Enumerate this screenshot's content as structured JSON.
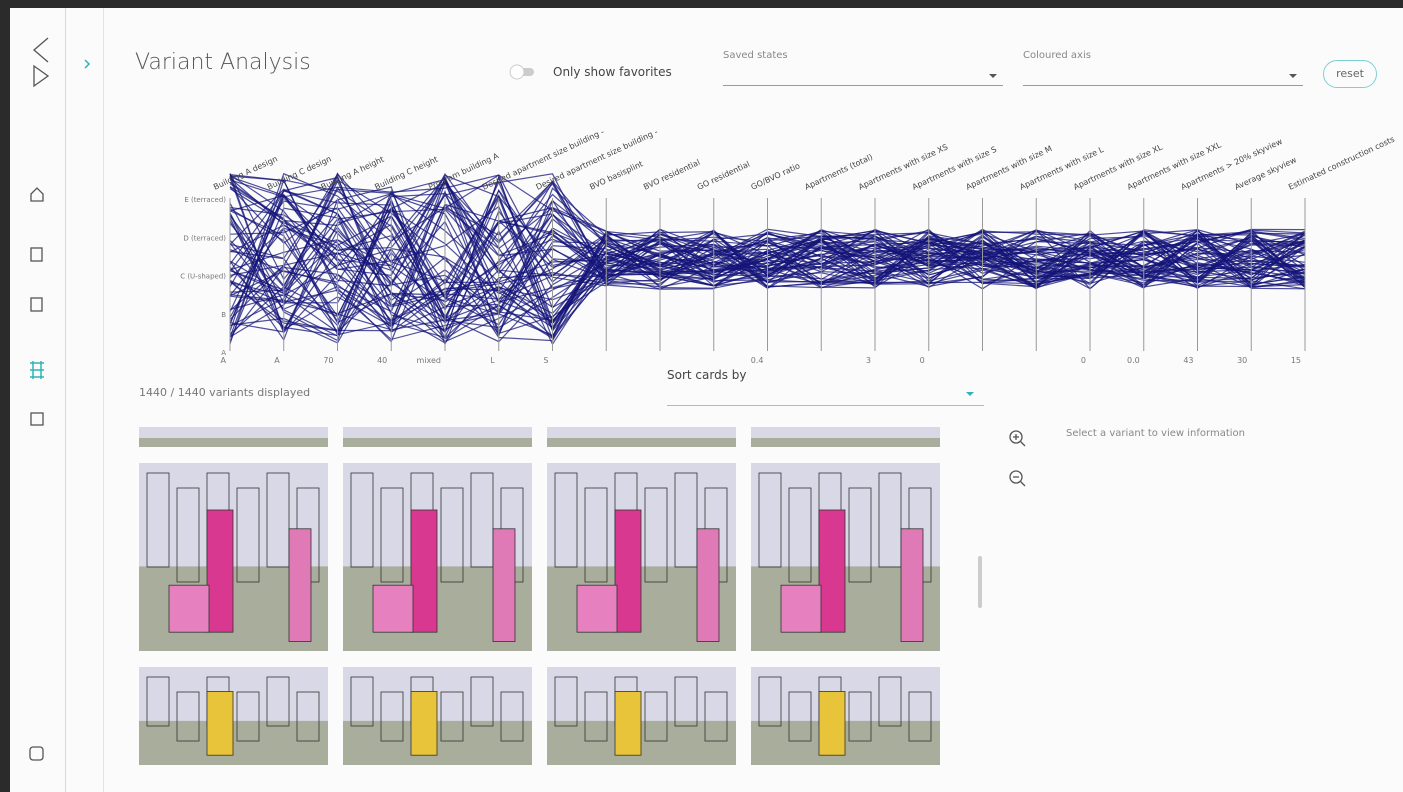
{
  "header": {
    "title": "Variant Analysis",
    "toggle_label": "Only show favorites",
    "saved_states_label": "Saved states",
    "coloured_axis_label": "Coloured axis",
    "reset": "reset"
  },
  "parallel_axes": {
    "left_labels": [
      "E (terraced)",
      "D (terraced)",
      "C (U-shaped)",
      "B",
      "A"
    ],
    "axes": [
      {
        "name": "Building A design",
        "bottom": "A"
      },
      {
        "name": "Building C design",
        "bottom": "A"
      },
      {
        "name": "Building A height",
        "bottom": "70"
      },
      {
        "name": "Building C height",
        "bottom": "40"
      },
      {
        "name": "Program building A",
        "bottom": "mixed"
      },
      {
        "name": "Desired apartment size building -",
        "bottom": "L"
      },
      {
        "name": "Desired apartment size building -",
        "bottom": "S"
      },
      {
        "name": "BVO basisplint"
      },
      {
        "name": "BVO residential"
      },
      {
        "name": "GO residential"
      },
      {
        "name": "GO/BVO ratio",
        "bottom": "0.4"
      },
      {
        "name": "Apartments (total)"
      },
      {
        "name": "Apartments with size XS",
        "bottom": "3"
      },
      {
        "name": "Apartments with size S",
        "bottom": "0"
      },
      {
        "name": "Apartments with size M"
      },
      {
        "name": "Apartments with size L"
      },
      {
        "name": "Apartments with size XL",
        "bottom": "0"
      },
      {
        "name": "Apartments with size XXL",
        "bottom": "0.0"
      },
      {
        "name": "Apartments > 20% skyview",
        "bottom": "43"
      },
      {
        "name": "Average skyview",
        "bottom": "30"
      },
      {
        "name": "Estimated construction costs",
        "bottom": "15"
      }
    ]
  },
  "status": "1440 / 1440 variants displayed",
  "sort_label": "Sort cards by",
  "info": "Select a variant to view information"
}
